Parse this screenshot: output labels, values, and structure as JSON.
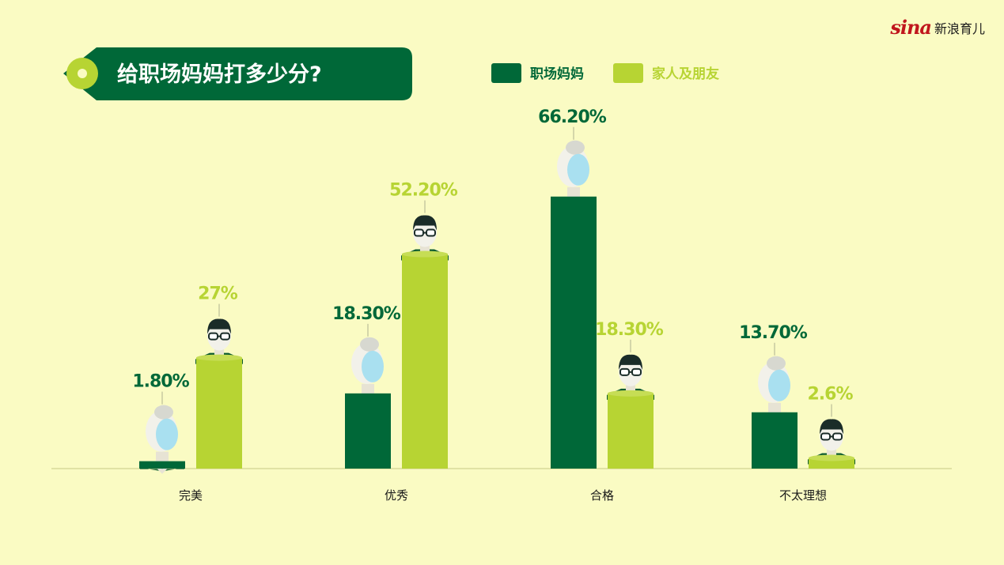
{
  "brand": {
    "logo_mark": "sina",
    "logo_text": "新浪育儿"
  },
  "colors": {
    "background": "#fafbc3",
    "working_mom": "#006838",
    "family_friends": "#b7d433",
    "title_bg": "#006838",
    "title_text": "#ffffff"
  },
  "icons": {
    "mom_figure": "grandmother-figure-icon",
    "family_figure": "man-with-glasses-figure-icon"
  },
  "chart_data": {
    "type": "bar",
    "title": "给职场妈妈打多少分?",
    "categories": [
      "完美",
      "优秀",
      "合格",
      "不太理想"
    ],
    "series": [
      {
        "name": "职场妈妈",
        "values": [
          1.8,
          18.3,
          66.2,
          13.7
        ],
        "labels": [
          "1.80%",
          "18.30%",
          "66.20%",
          "13.70%"
        ]
      },
      {
        "name": "家人及朋友",
        "values": [
          27,
          52.2,
          18.3,
          2.6
        ],
        "labels": [
          "27%",
          "52.20%",
          "18.30%",
          "2.6%"
        ]
      }
    ],
    "ylim": [
      0,
      80
    ],
    "grid": false,
    "legend_position": "top-right"
  }
}
